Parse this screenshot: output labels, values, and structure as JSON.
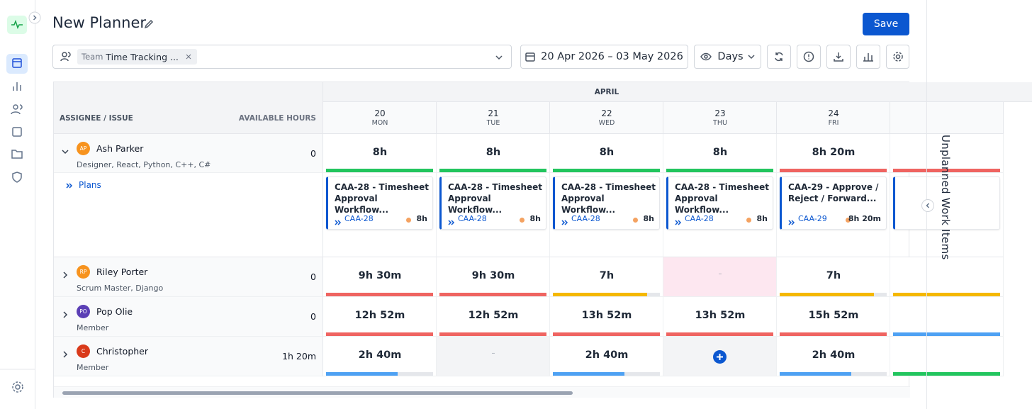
{
  "header": {
    "title": "New Planner",
    "save": "Save"
  },
  "filter": {
    "chip_label": "Team",
    "chip_value": "Time Tracking ..."
  },
  "date_range": "20 Apr 2026 – 03 May 2026",
  "view": "Days",
  "grid": {
    "month": "APRIL",
    "assignee_header": "ASSIGNEE / ISSUE",
    "hours_header": "AVAILABLE HOURS",
    "days": [
      {
        "date": "20",
        "weekday": "MON"
      },
      {
        "date": "21",
        "weekday": "TUE"
      },
      {
        "date": "22",
        "weekday": "WED"
      },
      {
        "date": "23",
        "weekday": "THU"
      },
      {
        "date": "24",
        "weekday": "FRI"
      }
    ],
    "assignees": [
      {
        "initials": "AP",
        "name": "Ash Parker",
        "role": "Designer, React, Python, C++, C#",
        "available": "0",
        "avatar_color": "#f7931e",
        "expanded": true,
        "cells": [
          {
            "hours": "8h",
            "bar": "#22c55e",
            "fill": 100
          },
          {
            "hours": "8h",
            "bar": "#22c55e",
            "fill": 100
          },
          {
            "hours": "8h",
            "bar": "#22c55e",
            "fill": 100
          },
          {
            "hours": "8h",
            "bar": "#22c55e",
            "fill": 100
          },
          {
            "hours": "8h 20m",
            "bar": "#ef6461",
            "fill": 100
          },
          {
            "bar": "#ef6461",
            "fill": 100
          }
        ]
      },
      {
        "initials": "RP",
        "name": "Riley Porter",
        "role": "Scrum Master, Django",
        "available": "0",
        "avatar_color": "#f7931e",
        "expanded": false,
        "cells": [
          {
            "hours": "9h 30m",
            "bar": "#ef6461",
            "fill": 100
          },
          {
            "hours": "9h 30m",
            "bar": "#ef6461",
            "fill": 100
          },
          {
            "hours": "7h",
            "bar": "#f5b800",
            "fill": 88
          },
          {
            "hours": "–",
            "bg": "#fde7f0"
          },
          {
            "hours": "7h",
            "bar": "#f5b800",
            "fill": 88
          },
          {
            "bar": "#f5b800",
            "fill": 100
          }
        ]
      },
      {
        "initials": "PO",
        "name": "Pop Olie",
        "role": "Member",
        "available": "0",
        "avatar_color": "#5b3fb5",
        "expanded": false,
        "cells": [
          {
            "hours": "12h 52m",
            "bar": "#ef6461",
            "fill": 100
          },
          {
            "hours": "12h 52m",
            "bar": "#ef6461",
            "fill": 100
          },
          {
            "hours": "13h 52m",
            "bar": "#ef6461",
            "fill": 100
          },
          {
            "hours": "13h 52m",
            "bar": "#ef6461",
            "fill": 100
          },
          {
            "hours": "15h 52m",
            "bar": "#ef6461",
            "fill": 100
          },
          {
            "bar": "#4ea1f3",
            "fill": 100
          }
        ]
      },
      {
        "initials": "C",
        "name": "Christopher",
        "role": "Member",
        "available": "1h 20m",
        "avatar_color": "#d93a1a",
        "expanded": false,
        "cells": [
          {
            "hours": "2h 40m",
            "bar": "#4ea1f3",
            "fill": 67
          },
          {
            "hours": "–",
            "bg": "#f3f4f6"
          },
          {
            "hours": "2h 40m",
            "bar": "#4ea1f3",
            "fill": 67
          },
          {
            "add": true,
            "bg": "#f3f4f6"
          },
          {
            "hours": "2h 40m",
            "bar": "#4ea1f3",
            "fill": 67
          },
          {
            "bar": "#22c55e",
            "fill": 100
          }
        ]
      }
    ]
  },
  "plans": {
    "label": "Plans",
    "cards": [
      {
        "title": "CAA-28 - Timesheet Approval Workflow...",
        "key": "CAA-28",
        "hours": "8h"
      },
      {
        "title": "CAA-28 - Timesheet Approval Workflow...",
        "key": "CAA-28",
        "hours": "8h"
      },
      {
        "title": "CAA-28 - Timesheet Approval Workflow...",
        "key": "CAA-28",
        "hours": "8h"
      },
      {
        "title": "CAA-28 - Timesheet Approval Workflow...",
        "key": "CAA-28",
        "hours": "8h"
      },
      {
        "title": "CAA-29 - Approve / Reject / Forward...",
        "key": "CAA-29",
        "hours": "8h 20m"
      }
    ]
  },
  "side_panel": "Unplanned Work Items"
}
